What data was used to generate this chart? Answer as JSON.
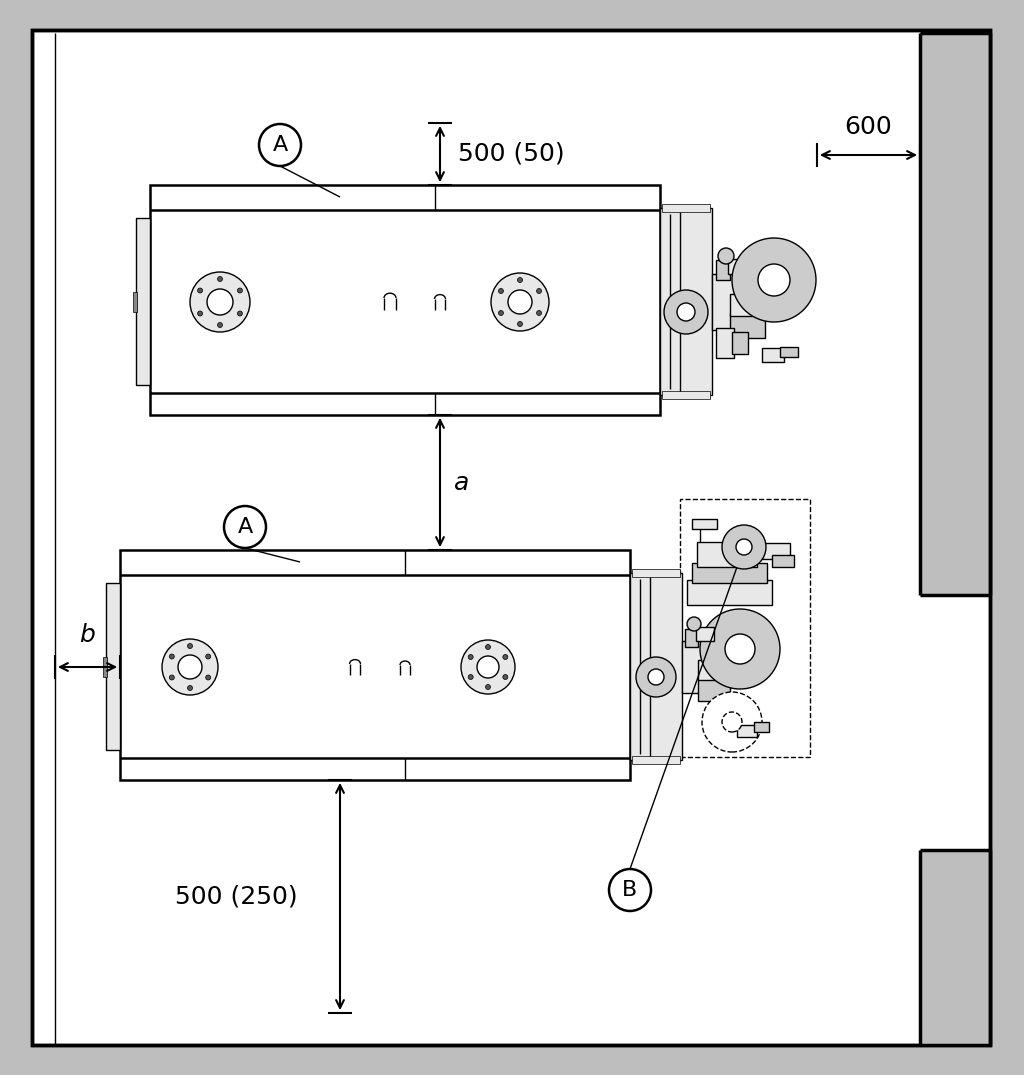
{
  "bg_gray": "#bebebe",
  "white": "#ffffff",
  "black": "#000000",
  "light_gray": "#e8e8e8",
  "mid_gray": "#cccccc",
  "dim_gray": "#aaaaaa",
  "label_500_50": "500 (50)",
  "label_600": "600",
  "label_a": "a",
  "label_b": "b",
  "label_500_250": "500 (250)",
  "label_A": "A",
  "label_B": "B",
  "lw_border": 2.5,
  "lw_main": 1.8,
  "lw_thin": 1.0,
  "lw_dim": 1.5,
  "fs_dim": 18,
  "fs_label": 16
}
